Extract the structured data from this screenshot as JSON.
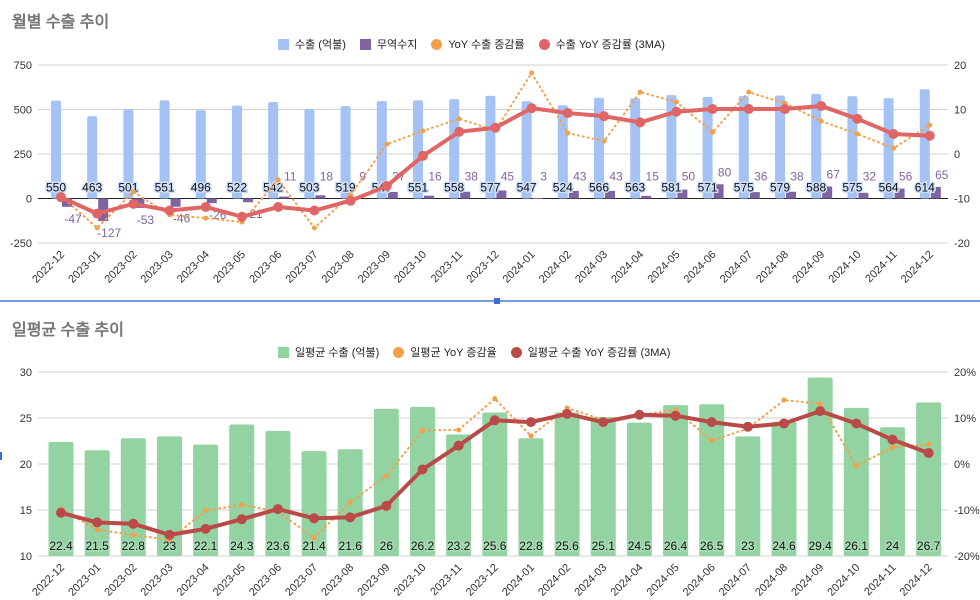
{
  "charts": [
    {
      "title": "월별 수출 추이",
      "legend": [
        {
          "label": "수출 (억불)",
          "color": "#a4c2f4",
          "shape": "square"
        },
        {
          "label": "무역수지",
          "color": "#8064a2",
          "shape": "square"
        },
        {
          "label": "YoY 수출 증감률",
          "color": "#f4a04b",
          "shape": "circle"
        },
        {
          "label": "수출 YoY 증감률 (3MA)",
          "color": "#e06666",
          "shape": "circle"
        }
      ]
    },
    {
      "title": "일평균 수출 추이",
      "legend": [
        {
          "label": "일평균 수출 (억불)",
          "color": "#93d3a2",
          "shape": "square"
        },
        {
          "label": "일평균 YoY 증감율",
          "color": "#f4a04b",
          "shape": "circle"
        },
        {
          "label": "일평균 수출 YoY 증감률 (3MA)",
          "color": "#b94a48",
          "shape": "circle"
        }
      ]
    }
  ],
  "chart_data": [
    {
      "type": "bar+line",
      "title": "월별 수출 추이",
      "categories": [
        "2022-12",
        "2023-01",
        "2023-02",
        "2023-03",
        "2023-04",
        "2023-05",
        "2023-06",
        "2023-07",
        "2023-08",
        "2023-09",
        "2023-10",
        "2023-11",
        "2023-12",
        "2024-01",
        "2024-02",
        "2024-03",
        "2024-04",
        "2024-05",
        "2024-06",
        "2024-07",
        "2024-08",
        "2024-09",
        "2024-10",
        "2024-11",
        "2024-12"
      ],
      "left_axis": {
        "range": [
          -250,
          750
        ],
        "ticks": [
          "750",
          "500",
          "250",
          "0",
          "-250"
        ]
      },
      "right_axis": {
        "range": [
          -20,
          20
        ],
        "ticks": [
          "20",
          "10",
          "0",
          "-10",
          "-20"
        ]
      },
      "grid": true,
      "legend_position": "top",
      "series": [
        {
          "name": "수출 (억불)",
          "type": "bar",
          "axis": "left",
          "color": "#a4c2f4",
          "values": [
            550,
            463,
            501,
            551,
            496,
            522,
            542,
            503,
            519,
            547,
            551,
            558,
            577,
            547,
            524,
            566,
            563,
            581,
            571,
            575,
            579,
            588,
            575,
            564,
            614
          ]
        },
        {
          "name": "무역수지",
          "type": "bar",
          "axis": "left",
          "color": "#8064a2",
          "values": [
            -47,
            -127,
            -53,
            -46,
            -26,
            -21,
            11,
            18,
            9,
            37,
            16,
            38,
            45,
            3,
            43,
            43,
            15,
            50,
            80,
            36,
            38,
            67,
            32,
            56,
            65
          ]
        },
        {
          "name": "YoY 수출 증감률",
          "type": "line-dotted",
          "axis": "right",
          "color": "#f4a04b",
          "values": [
            -9.5,
            -16.6,
            -8.5,
            -13.7,
            -14.4,
            -15.3,
            -5.8,
            -16.6,
            -9.2,
            2.2,
            5.2,
            7.9,
            5.3,
            18.2,
            4.7,
            2.9,
            13.9,
            11.7,
            4.9,
            13.9,
            11.4,
            7.4,
            4.5,
            1.3,
            6.5
          ]
        },
        {
          "name": "수출 YoY 증감률 (3MA)",
          "type": "line",
          "axis": "right",
          "color": "#e06666",
          "values": [
            -9.7,
            -13.4,
            -11.2,
            -12.7,
            -11.9,
            -14.1,
            -11.9,
            -12.7,
            -10.5,
            -7.2,
            -0.4,
            5.0,
            5.9,
            10.3,
            9.2,
            8.5,
            7.1,
            9.5,
            10.1,
            10.1,
            10.1,
            10.8,
            7.9,
            4.5,
            4.1
          ]
        }
      ]
    },
    {
      "type": "bar+line",
      "title": "일평균 수출 추이",
      "categories": [
        "2022-12",
        "2023-01",
        "2023-02",
        "2023-03",
        "2023-04",
        "2023-05",
        "2023-06",
        "2023-07",
        "2023-08",
        "2023-09",
        "2023-10",
        "2023-11",
        "2023-12",
        "2024-01",
        "2024-02",
        "2024-03",
        "2024-04",
        "2024-05",
        "2024-06",
        "2024-07",
        "2024-08",
        "2024-09",
        "2024-10",
        "2024-11",
        "2024-12"
      ],
      "left_axis": {
        "range": [
          10,
          30
        ],
        "ticks": [
          "30",
          "25",
          "20",
          "15",
          "10"
        ]
      },
      "right_axis": {
        "range": [
          -20,
          20
        ],
        "ticks": [
          "20%",
          "10%",
          "0%",
          "-10%",
          "-20%"
        ]
      },
      "grid": true,
      "legend_position": "top",
      "series": [
        {
          "name": "일평균 수출 (억불)",
          "type": "bar",
          "axis": "left",
          "color": "#93d3a2",
          "values": [
            22.4,
            21.5,
            22.8,
            23,
            22.1,
            24.3,
            23.6,
            21.4,
            21.6,
            26,
            26.2,
            23.2,
            25.6,
            22.8,
            25.6,
            25.1,
            24.5,
            26.4,
            26.5,
            23,
            24.6,
            29.4,
            26.1,
            24,
            26.7
          ]
        },
        {
          "name": "일평균 YoY 증감율",
          "type": "line-dotted",
          "axis": "right",
          "color": "#f4a04b",
          "values": [
            -9.8,
            -14.3,
            -15.4,
            -16.5,
            -10.1,
            -8.9,
            -10.3,
            -16.1,
            -8.3,
            -2.6,
            7.3,
            7.4,
            14.2,
            6.1,
            12.2,
            9.6,
            10.7,
            11.7,
            5.1,
            7.7,
            13.9,
            13.1,
            -0.4,
            3.6,
            4.3
          ]
        },
        {
          "name": "일평균 수출 YoY 증감률 (3MA)",
          "type": "line",
          "axis": "right",
          "color": "#b94a48",
          "values": [
            -10.6,
            -12.7,
            -13.0,
            -15.4,
            -14.1,
            -12.0,
            -9.8,
            -11.8,
            -11.6,
            -9.1,
            -1.2,
            4.0,
            9.5,
            9.1,
            10.9,
            9.1,
            10.7,
            10.5,
            9.1,
            8.1,
            8.8,
            11.5,
            8.8,
            5.3,
            2.4
          ]
        }
      ]
    }
  ]
}
